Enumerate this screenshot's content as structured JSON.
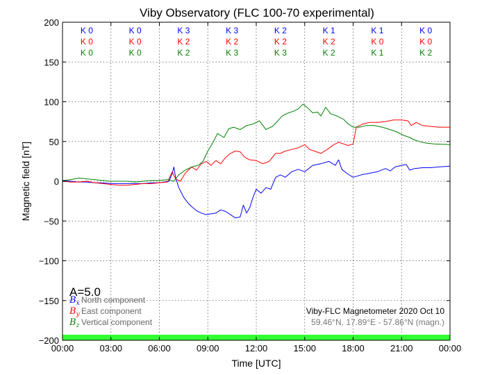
{
  "chart_data": {
    "type": "line",
    "title": "Viby Observatory (FLC 100-70 experimental)",
    "xlabel": "Time [UTC]",
    "ylabel": "Magnetic field [nT]",
    "xlim": [
      0,
      24
    ],
    "ylim": [
      -200,
      200
    ],
    "grid": true,
    "x_ticks": [
      "00:00",
      "03:00",
      "06:00",
      "09:00",
      "12:00",
      "15:00",
      "18:00",
      "21:00",
      "00:00"
    ],
    "y_ticks": [
      -200,
      -150,
      -100,
      -50,
      0,
      50,
      100,
      150,
      200
    ],
    "colors": {
      "north": "#0000ff",
      "east": "#ff0000",
      "vertical": "#008000",
      "activity_bar": "#33ff33"
    },
    "k_index": {
      "blocks": [
        "0-3",
        "3-6",
        "6-9",
        "9-12",
        "12-15",
        "15-18",
        "18-21",
        "21-24"
      ],
      "north": [
        "K 0",
        "K 0",
        "K 3",
        "K 3",
        "K 2",
        "K 1",
        "K 1",
        "K 0"
      ],
      "east": [
        "K 0",
        "K 0",
        "K 2",
        "K 2",
        "K 2",
        "K 2",
        "K 0",
        "K 0"
      ],
      "vertical": [
        "K 0",
        "K 0",
        "K 2",
        "K 3",
        "K 3",
        "K 2",
        "K 1",
        "K 2"
      ]
    },
    "a_index": "A=5.0",
    "legend": [
      {
        "symbol": "B",
        "sub": "x",
        "label": "North component",
        "color": "#0000ff"
      },
      {
        "symbol": "B",
        "sub": "y",
        "label": "East component",
        "color": "#ff0000"
      },
      {
        "symbol": "B",
        "sub": "z",
        "label": "Vertical component",
        "color": "#008000"
      }
    ],
    "info_line1": "Viby-FLC Magnetometer 2020 Oct 10",
    "info_line2": "59.46°N, 17.89°E - 57.86°N (magn.)",
    "series": [
      {
        "name": "North component",
        "color": "#0000ff",
        "points": [
          [
            0,
            1
          ],
          [
            0.5,
            0
          ],
          [
            1,
            -1
          ],
          [
            1.5,
            -1
          ],
          [
            2,
            -2
          ],
          [
            2.5,
            -2
          ],
          [
            3,
            -3
          ],
          [
            3.5,
            -3
          ],
          [
            4,
            -3
          ],
          [
            4.5,
            -3
          ],
          [
            5,
            -3
          ],
          [
            5.5,
            -2
          ],
          [
            6,
            -2
          ],
          [
            6.3,
            -1
          ],
          [
            6.6,
            0
          ],
          [
            6.8,
            10
          ],
          [
            6.9,
            18
          ],
          [
            7,
            5
          ],
          [
            7.2,
            -8
          ],
          [
            7.5,
            -20
          ],
          [
            7.8,
            -28
          ],
          [
            8,
            -32
          ],
          [
            8.3,
            -37
          ],
          [
            8.6,
            -40
          ],
          [
            8.9,
            -42
          ],
          [
            9.2,
            -41
          ],
          [
            9.5,
            -40
          ],
          [
            9.8,
            -36
          ],
          [
            10.1,
            -38
          ],
          [
            10.4,
            -42
          ],
          [
            10.7,
            -46
          ],
          [
            11,
            -45
          ],
          [
            11.2,
            -30
          ],
          [
            11.4,
            -40
          ],
          [
            11.6,
            -33
          ],
          [
            11.8,
            -20
          ],
          [
            12,
            -10
          ],
          [
            12.3,
            -15
          ],
          [
            12.6,
            -8
          ],
          [
            12.9,
            -10
          ],
          [
            13.2,
            5
          ],
          [
            13.5,
            8
          ],
          [
            13.8,
            5
          ],
          [
            14.2,
            12
          ],
          [
            14.6,
            15
          ],
          [
            15,
            12
          ],
          [
            15.5,
            20
          ],
          [
            16,
            22
          ],
          [
            16.5,
            25
          ],
          [
            16.9,
            20
          ],
          [
            17.1,
            27
          ],
          [
            17.3,
            15
          ],
          [
            17.6,
            10
          ],
          [
            18,
            5
          ],
          [
            18.5,
            8
          ],
          [
            19,
            10
          ],
          [
            19.5,
            12
          ],
          [
            20,
            16
          ],
          [
            20.3,
            13
          ],
          [
            20.6,
            18
          ],
          [
            21,
            20
          ],
          [
            21.3,
            21
          ],
          [
            21.5,
            14
          ],
          [
            21.8,
            16
          ],
          [
            22.3,
            17
          ],
          [
            22.8,
            17
          ],
          [
            23.3,
            18
          ],
          [
            24,
            19
          ]
        ]
      },
      {
        "name": "East component",
        "color": "#ff0000",
        "points": [
          [
            0,
            0
          ],
          [
            0.5,
            -1
          ],
          [
            1,
            -1
          ],
          [
            1.5,
            0
          ],
          [
            2,
            -2
          ],
          [
            2.5,
            -3
          ],
          [
            3,
            -4
          ],
          [
            3.5,
            -5
          ],
          [
            4,
            -5
          ],
          [
            4.5,
            -4
          ],
          [
            5,
            -3
          ],
          [
            5.5,
            -3
          ],
          [
            6,
            -2
          ],
          [
            6.5,
            -1
          ],
          [
            6.8,
            12
          ],
          [
            7,
            3
          ],
          [
            7.3,
            0
          ],
          [
            7.6,
            10
          ],
          [
            8,
            18
          ],
          [
            8.3,
            14
          ],
          [
            8.6,
            22
          ],
          [
            8.9,
            25
          ],
          [
            9.2,
            20
          ],
          [
            9.5,
            26
          ],
          [
            9.8,
            22
          ],
          [
            10.1,
            30
          ],
          [
            10.4,
            35
          ],
          [
            10.7,
            38
          ],
          [
            11,
            37
          ],
          [
            11.3,
            30
          ],
          [
            11.6,
            27
          ],
          [
            12,
            26
          ],
          [
            12.4,
            22
          ],
          [
            12.8,
            25
          ],
          [
            13.2,
            35
          ],
          [
            13.5,
            35
          ],
          [
            13.8,
            38
          ],
          [
            14.2,
            40
          ],
          [
            14.6,
            42
          ],
          [
            15,
            46
          ],
          [
            15.3,
            40
          ],
          [
            15.6,
            38
          ],
          [
            16,
            35
          ],
          [
            16.4,
            40
          ],
          [
            16.8,
            46
          ],
          [
            17.1,
            49
          ],
          [
            17.4,
            47
          ],
          [
            17.7,
            45
          ],
          [
            18,
            47
          ],
          [
            18.2,
            68
          ],
          [
            18.6,
            72
          ],
          [
            19,
            74
          ],
          [
            19.5,
            74
          ],
          [
            20,
            75
          ],
          [
            20.5,
            77
          ],
          [
            21,
            77
          ],
          [
            21.4,
            76
          ],
          [
            21.6,
            70
          ],
          [
            21.9,
            74
          ],
          [
            22.3,
            70
          ],
          [
            22.8,
            69
          ],
          [
            23.3,
            68
          ],
          [
            24,
            68
          ]
        ]
      },
      {
        "name": "Vertical component",
        "color": "#008000",
        "points": [
          [
            0,
            1
          ],
          [
            0.5,
            2
          ],
          [
            1,
            4
          ],
          [
            1.5,
            3
          ],
          [
            2,
            2
          ],
          [
            2.5,
            1
          ],
          [
            3,
            0
          ],
          [
            3.5,
            0
          ],
          [
            4,
            0
          ],
          [
            4.5,
            -1
          ],
          [
            5,
            0
          ],
          [
            5.5,
            1
          ],
          [
            6,
            1
          ],
          [
            6.5,
            2
          ],
          [
            6.9,
            0
          ],
          [
            7.2,
            8
          ],
          [
            7.6,
            14
          ],
          [
            8,
            18
          ],
          [
            8.4,
            20
          ],
          [
            8.7,
            25
          ],
          [
            9,
            38
          ],
          [
            9.3,
            48
          ],
          [
            9.6,
            60
          ],
          [
            10,
            55
          ],
          [
            10.3,
            66
          ],
          [
            10.6,
            68
          ],
          [
            11,
            65
          ],
          [
            11.4,
            70
          ],
          [
            11.8,
            72
          ],
          [
            12.2,
            76
          ],
          [
            12.6,
            65
          ],
          [
            13,
            69
          ],
          [
            13.3,
            75
          ],
          [
            13.6,
            82
          ],
          [
            14,
            86
          ],
          [
            14.3,
            88
          ],
          [
            14.6,
            91
          ],
          [
            14.9,
            97
          ],
          [
            15.2,
            92
          ],
          [
            15.5,
            86
          ],
          [
            15.8,
            87
          ],
          [
            16,
            82
          ],
          [
            16.3,
            93
          ],
          [
            16.6,
            85
          ],
          [
            17,
            82
          ],
          [
            17.4,
            78
          ],
          [
            17.7,
            72
          ],
          [
            18,
            68
          ],
          [
            18.4,
            68
          ],
          [
            18.8,
            70
          ],
          [
            19.3,
            70
          ],
          [
            19.8,
            68
          ],
          [
            20.3,
            65
          ],
          [
            20.7,
            62
          ],
          [
            21.1,
            58
          ],
          [
            21.5,
            55
          ],
          [
            21.8,
            52
          ],
          [
            22.1,
            50
          ],
          [
            22.5,
            48
          ],
          [
            23,
            47
          ],
          [
            24,
            46
          ]
        ]
      }
    ]
  }
}
